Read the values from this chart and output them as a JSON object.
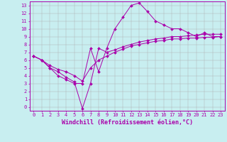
{
  "title": "",
  "xlabel": "Windchill (Refroidissement éolien,°C)",
  "ylabel": "",
  "background_color": "#c8eef0",
  "line_color": "#aa00aa",
  "xlim": [
    -0.5,
    23.5
  ],
  "ylim": [
    -0.5,
    13.5
  ],
  "xticks": [
    0,
    1,
    2,
    3,
    4,
    5,
    6,
    7,
    8,
    9,
    10,
    11,
    12,
    13,
    14,
    15,
    16,
    17,
    18,
    19,
    20,
    21,
    22,
    23
  ],
  "yticks": [
    0,
    1,
    2,
    3,
    4,
    5,
    6,
    7,
    8,
    9,
    10,
    11,
    12,
    13
  ],
  "line1_x": [
    0,
    1,
    2,
    3,
    4,
    5,
    6,
    7,
    8,
    9,
    10,
    11,
    12,
    13,
    14,
    15,
    16,
    17,
    18,
    19,
    20,
    21,
    22,
    23
  ],
  "line1_y": [
    6.5,
    6.0,
    5.0,
    4.0,
    3.5,
    3.0,
    3.0,
    7.5,
    4.5,
    7.5,
    10.0,
    11.5,
    13.0,
    13.3,
    12.2,
    11.0,
    10.5,
    10.0,
    10.0,
    9.5,
    9.0,
    9.5,
    9.0,
    9.0
  ],
  "line2_x": [
    0,
    1,
    2,
    3,
    4,
    5,
    6,
    7,
    8,
    9,
    10,
    11,
    12,
    13,
    14,
    15,
    16,
    17,
    18,
    19,
    20,
    21,
    22,
    23
  ],
  "line2_y": [
    6.5,
    6.0,
    5.0,
    4.5,
    3.8,
    3.2,
    -0.2,
    3.0,
    7.5,
    7.0,
    7.3,
    7.7,
    8.0,
    8.3,
    8.5,
    8.7,
    8.8,
    9.0,
    9.0,
    9.1,
    9.2,
    9.3,
    9.3,
    9.3
  ],
  "line3_x": [
    0,
    1,
    2,
    3,
    4,
    5,
    6,
    7,
    8,
    9,
    10,
    11,
    12,
    13,
    14,
    15,
    16,
    17,
    18,
    19,
    20,
    21,
    22,
    23
  ],
  "line3_y": [
    6.5,
    6.0,
    5.3,
    4.8,
    4.5,
    4.0,
    3.3,
    5.0,
    6.0,
    6.5,
    7.0,
    7.4,
    7.8,
    8.0,
    8.2,
    8.4,
    8.5,
    8.7,
    8.7,
    8.8,
    8.8,
    8.9,
    8.9,
    9.0
  ],
  "grid_color": "#aaaaaa",
  "tick_fontsize": 5.0,
  "xlabel_fontsize": 6.0,
  "marker": "D",
  "marker_size": 2.0,
  "linewidth": 0.7
}
